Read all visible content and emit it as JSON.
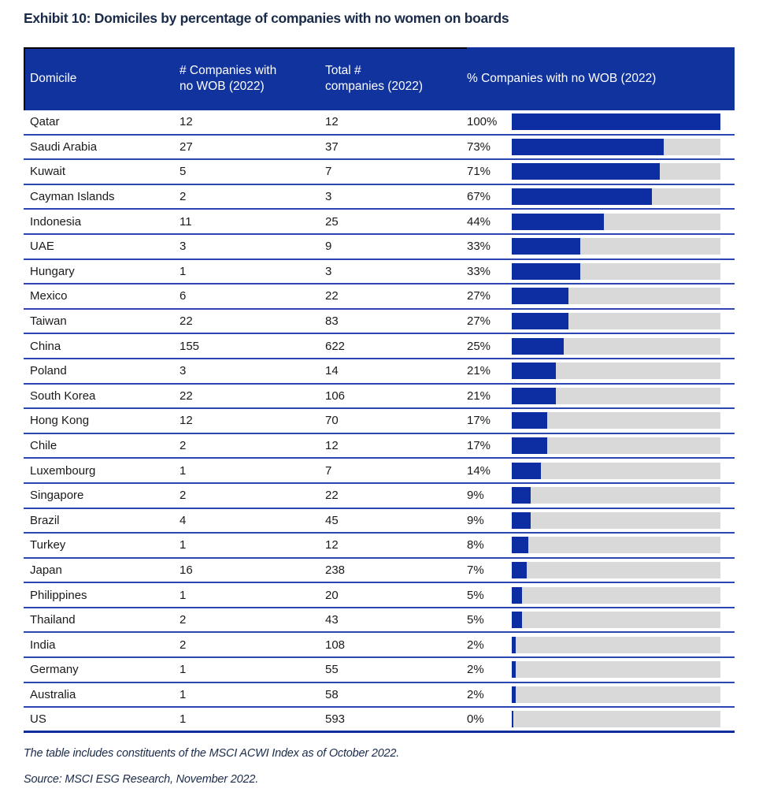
{
  "title": "Exhibit 10: Domiciles by percentage of companies with no women on boards",
  "table": {
    "columns": [
      "Domicile",
      "# Companies with\nno WOB (2022)",
      "Total #\ncompanies (2022)",
      "% Companies with no WOB (2022)"
    ]
  },
  "chart_data": {
    "type": "bar",
    "orientation": "horizontal",
    "title": "Exhibit 10: Domiciles by percentage of companies with no women on boards",
    "categories": [
      "Qatar",
      "Saudi Arabia",
      "Kuwait",
      "Cayman Islands",
      "Indonesia",
      "UAE",
      "Hungary",
      "Mexico",
      "Taiwan",
      "China",
      "Poland",
      "South Korea",
      "Hong Kong",
      "Chile",
      "Luxembourg",
      "Singapore",
      "Brazil",
      "Turkey",
      "Japan",
      "Philippines",
      "Thailand",
      "India",
      "Germany",
      "Australia",
      "US"
    ],
    "series": [
      {
        "name": "# Companies with no WOB (2022)",
        "values": [
          12,
          27,
          5,
          2,
          11,
          3,
          1,
          6,
          22,
          155,
          3,
          22,
          12,
          2,
          1,
          2,
          4,
          1,
          16,
          1,
          2,
          2,
          1,
          1,
          1
        ]
      },
      {
        "name": "Total # companies (2022)",
        "values": [
          12,
          37,
          7,
          3,
          25,
          9,
          3,
          22,
          83,
          622,
          14,
          106,
          70,
          12,
          7,
          22,
          45,
          12,
          238,
          20,
          43,
          108,
          55,
          58,
          593
        ]
      },
      {
        "name": "% Companies with no WOB (2022)",
        "values": [
          100,
          73,
          71,
          67,
          44,
          33,
          33,
          27,
          27,
          25,
          21,
          21,
          17,
          17,
          14,
          9,
          9,
          8,
          7,
          5,
          5,
          2,
          2,
          2,
          0
        ],
        "unit": "%"
      }
    ],
    "xlim": [
      0,
      100
    ],
    "legend": "none",
    "grid": "off"
  },
  "footnotes": [
    "The table includes constituents of the MSCI ACWI Index as of October 2022.",
    "Source: MSCI ESG Research, November 2022."
  ],
  "colors": {
    "header_bg": "#11339E",
    "header_text": "#FFFFFF",
    "bar_fill": "#0D2EA3",
    "bar_track": "#D9D9D9",
    "row_divider": "#2C46B4",
    "bottom_border": "#102E9B",
    "header_accent_border": "#000000",
    "body_text": "#1A1A1A",
    "title_text": "#1A2B49",
    "zero_bar_marker": "#B9C5E9"
  }
}
